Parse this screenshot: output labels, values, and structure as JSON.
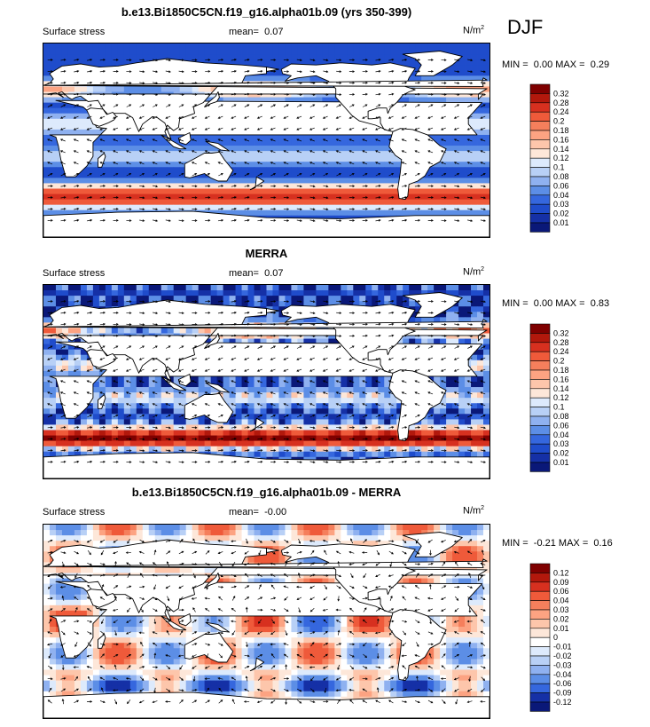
{
  "season": "DJF",
  "chart_data": [
    {
      "type": "heatmap",
      "title": "b.e13.Bi1850C5CN.f19_g16.alpha01b.09 (yrs 350-399)",
      "left_label": "Surface stress",
      "mean_label": "mean=",
      "mean_value": "0.07",
      "units_base": "N/m",
      "units_exp": "2",
      "min_label": "MIN =",
      "min_value": "0.00",
      "max_label": "MAX =",
      "max_value": "0.29",
      "colorbar_levels": [
        "0.32",
        "0.28",
        "0.24",
        "0.2",
        "0.18",
        "0.16",
        "0.14",
        "0.12",
        "0.1",
        "0.08",
        "0.06",
        "0.04",
        "0.03",
        "0.02",
        "0.01"
      ],
      "colorbar_colors": [
        "#7f0000",
        "#b2180c",
        "#d7301f",
        "#ef5a3a",
        "#f57f5c",
        "#fca382",
        "#fdc6ab",
        "#fde7d9",
        "#ddeafc",
        "#b8d0f6",
        "#8fb1f0",
        "#5c8ee6",
        "#3567de",
        "#1f4ccb",
        "#1530a6",
        "#0a1878"
      ],
      "field": "model"
    },
    {
      "type": "heatmap",
      "title": "MERRA",
      "left_label": "Surface stress",
      "mean_label": "mean=",
      "mean_value": "0.07",
      "units_base": "N/m",
      "units_exp": "2",
      "min_label": "MIN =",
      "min_value": "0.00",
      "max_label": "MAX =",
      "max_value": "0.83",
      "colorbar_levels": [
        "0.32",
        "0.28",
        "0.24",
        "0.2",
        "0.18",
        "0.16",
        "0.14",
        "0.12",
        "0.1",
        "0.08",
        "0.06",
        "0.04",
        "0.03",
        "0.02",
        "0.01"
      ],
      "colorbar_colors": [
        "#7f0000",
        "#b2180c",
        "#d7301f",
        "#ef5a3a",
        "#f57f5c",
        "#fca382",
        "#fdc6ab",
        "#fde7d9",
        "#ddeafc",
        "#b8d0f6",
        "#8fb1f0",
        "#5c8ee6",
        "#3567de",
        "#1f4ccb",
        "#1530a6",
        "#0a1878"
      ],
      "field": "obs"
    },
    {
      "type": "heatmap",
      "title": "b.e13.Bi1850C5CN.f19_g16.alpha01b.09 - MERRA",
      "left_label": "Surface stress",
      "mean_label": "mean=",
      "mean_value": "-0.00",
      "units_base": "N/m",
      "units_exp": "2",
      "min_label": "MIN =",
      "min_value": "-0.21",
      "max_label": "MAX =",
      "max_value": "0.16",
      "colorbar_levels": [
        "0.12",
        "0.09",
        "0.06",
        "0.04",
        "0.03",
        "0.02",
        "0.01",
        "0",
        "-0.01",
        "-0.02",
        "-0.03",
        "-0.04",
        "-0.06",
        "-0.09",
        "-0.12"
      ],
      "colorbar_colors": [
        "#7f0000",
        "#b2180c",
        "#d7301f",
        "#ef5a3a",
        "#f57f5c",
        "#fca382",
        "#fdc6ab",
        "#fde7d9",
        "#ffffff",
        "#ddeafc",
        "#b8d0f6",
        "#8fb1f0",
        "#5c8ee6",
        "#3567de",
        "#1530a6",
        "#0a1878"
      ],
      "field": "diff"
    }
  ]
}
